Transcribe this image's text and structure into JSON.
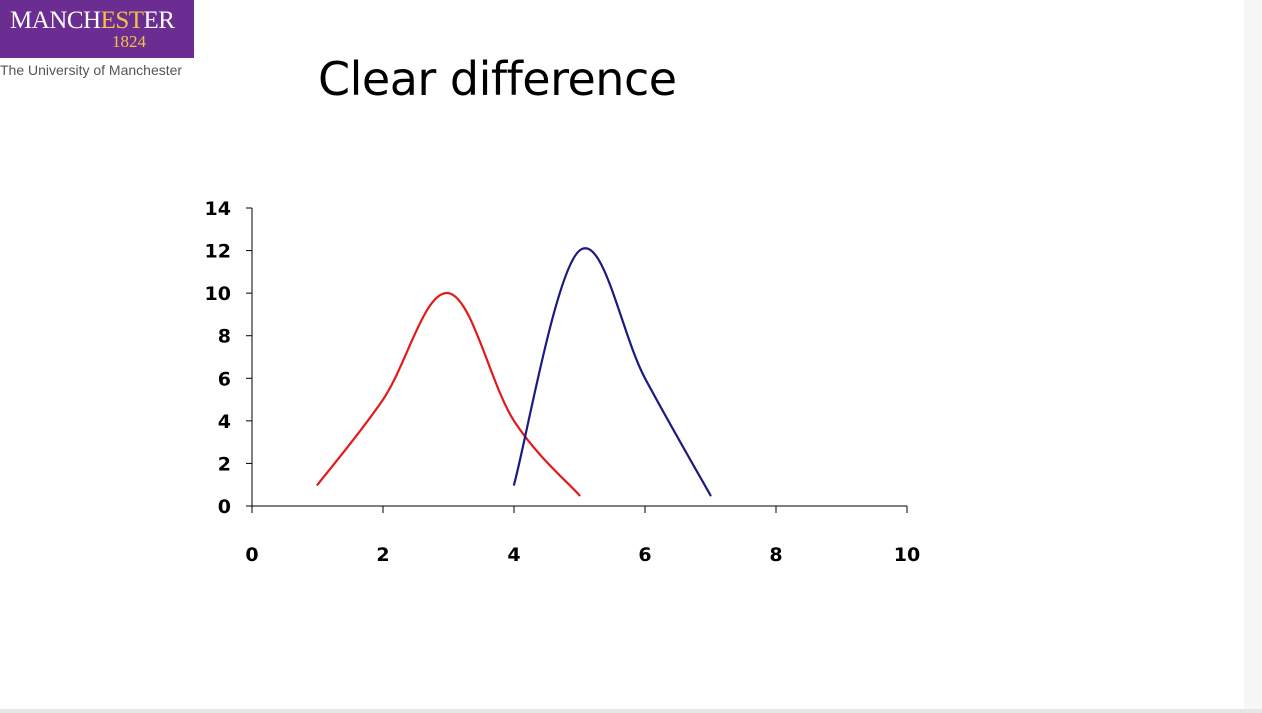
{
  "logo": {
    "name_part1": "MANCH",
    "name_part2": "EST",
    "name_part3": "ER",
    "year": "1824",
    "subtitle": "The University of Manchester",
    "colors": {
      "background": "#6b2d91",
      "accent": "#f3c14a"
    }
  },
  "slide": {
    "title": "Clear difference"
  },
  "chart_data": {
    "type": "line",
    "title": "",
    "xlabel": "",
    "ylabel": "",
    "xlim": [
      0,
      10
    ],
    "ylim": [
      0,
      14
    ],
    "x_ticks": [
      0,
      2,
      4,
      6,
      8,
      10
    ],
    "y_ticks": [
      0,
      2,
      4,
      6,
      8,
      10,
      12,
      14
    ],
    "grid": false,
    "legend": "none",
    "series": [
      {
        "color": "#e31a1a",
        "smooth": true,
        "points": [
          [
            1,
            1
          ],
          [
            2,
            5
          ],
          [
            3,
            10
          ],
          [
            4,
            4
          ],
          [
            5,
            0.5
          ]
        ]
      },
      {
        "color": "#1a1a80",
        "smooth": true,
        "points": [
          [
            4,
            1
          ],
          [
            5,
            12
          ],
          [
            6,
            6
          ],
          [
            7,
            0.5
          ]
        ]
      }
    ]
  }
}
